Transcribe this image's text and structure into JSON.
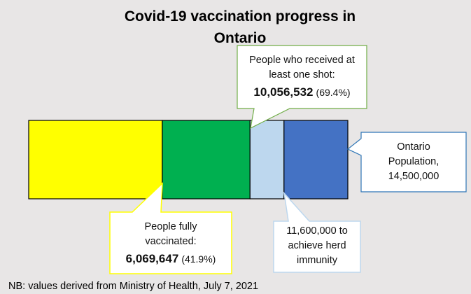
{
  "chart_data": {
    "type": "bar",
    "orientation": "horizontal-stacked",
    "title_line1": "Covid-19 vaccination progress in",
    "title_line2": "Ontario",
    "total": 14500000,
    "segments": [
      {
        "name": "People fully vaccinated",
        "cumulative_value": 6069647,
        "color": "#ffff00"
      },
      {
        "name": "People who received at least one shot",
        "cumulative_value": 10056532,
        "color": "#00b050"
      },
      {
        "name": "Herd immunity target",
        "cumulative_value": 11600000,
        "color": "#bdd7ee"
      },
      {
        "name": "Ontario Population",
        "cumulative_value": 14500000,
        "color": "#4472c4"
      }
    ],
    "callouts": {
      "one_shot": {
        "line1": "People who received at",
        "line2": "least one shot:",
        "value": "10,056,532",
        "pct": "(69.4%)"
      },
      "fully": {
        "line1": "People fully",
        "line2": "vaccinated:",
        "value": "6,069,647",
        "pct": "(41.9%)"
      },
      "herd": {
        "line1": "11,600,000 to",
        "line2": "achieve herd",
        "line3": "immunity"
      },
      "population": {
        "line1": "Ontario",
        "line2": "Population,",
        "line3": "14,500,000"
      }
    },
    "footnote": "NB: values derived from Ministry of Health, July 7, 2021"
  }
}
